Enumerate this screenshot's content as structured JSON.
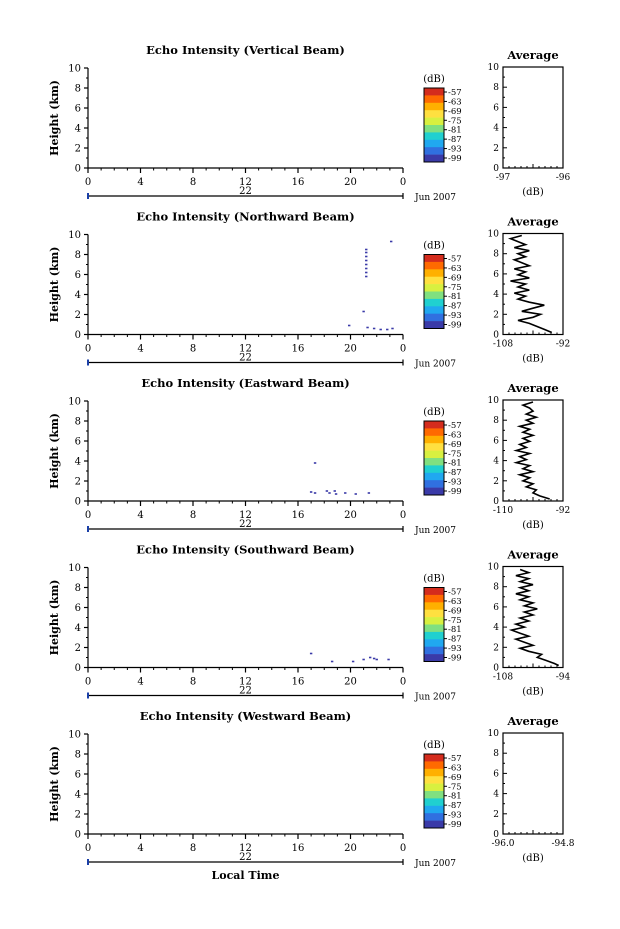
{
  "x_axis_label": "Local Time",
  "date_label": "Jun 2007",
  "day_label": "22",
  "height_axis_label": "Height (km)",
  "unit_label": "(dB)",
  "average_title": "Average",
  "x_ticks": [
    "0",
    "4",
    "8",
    "12",
    "16",
    "20",
    "0"
  ],
  "y_ticks": [
    "0",
    "2",
    "4",
    "6",
    "8",
    "10"
  ],
  "colorbar_ticks": [
    "-57",
    "-63",
    "-69",
    "-75",
    "-81",
    "-87",
    "-93",
    "-99"
  ],
  "colorbar_colors": [
    "#d42c1d",
    "#ff6a00",
    "#ffb000",
    "#ffe040",
    "#d8f040",
    "#80e080",
    "#20d0d0",
    "#20a8f0",
    "#3070e0",
    "#3a3aa8"
  ],
  "chart_data": [
    {
      "type": "heatmap",
      "title": "Echo Intensity (Vertical Beam)",
      "xlim": [
        0,
        24
      ],
      "ylim": [
        0,
        10
      ],
      "xlabel": "22",
      "ylabel": "Height (km)",
      "points": [],
      "profile": {
        "xlim": [
          -97,
          -96
        ],
        "x_ticks": [
          "-97",
          "-96"
        ],
        "xlabel": "(dB)",
        "values": []
      }
    },
    {
      "type": "heatmap",
      "title": "Echo Intensity (Northward Beam)",
      "xlim": [
        0,
        24
      ],
      "ylim": [
        0,
        10
      ],
      "xlabel": "22",
      "ylabel": "Height (km)",
      "points": [
        [
          21.0,
          2.3
        ],
        [
          21.2,
          5.8
        ],
        [
          21.2,
          6.2
        ],
        [
          21.2,
          6.6
        ],
        [
          21.2,
          7.0
        ],
        [
          21.2,
          7.4
        ],
        [
          21.2,
          7.8
        ],
        [
          21.2,
          8.2
        ],
        [
          21.2,
          8.5
        ],
        [
          19.9,
          0.9
        ],
        [
          21.3,
          0.7
        ],
        [
          21.8,
          0.6
        ],
        [
          22.3,
          0.5
        ],
        [
          22.8,
          0.5
        ],
        [
          23.2,
          0.6
        ],
        [
          23.1,
          9.3
        ]
      ],
      "profile": {
        "xlim": [
          -108,
          -92
        ],
        "x_ticks": [
          "-108",
          "-92"
        ],
        "xlabel": "(dB)",
        "values": [
          [
            -95,
            0.2
          ],
          [
            -97,
            0.5
          ],
          [
            -99,
            0.8
          ],
          [
            -101,
            1.1
          ],
          [
            -104,
            1.4
          ],
          [
            -100,
            1.7
          ],
          [
            -98,
            2.0
          ],
          [
            -103,
            2.3
          ],
          [
            -100,
            2.6
          ],
          [
            -97,
            2.9
          ],
          [
            -101,
            3.2
          ],
          [
            -104,
            3.5
          ],
          [
            -102,
            3.8
          ],
          [
            -105,
            4.1
          ],
          [
            -101,
            4.4
          ],
          [
            -104,
            4.7
          ],
          [
            -102,
            5.0
          ],
          [
            -106,
            5.3
          ],
          [
            -101,
            5.6
          ],
          [
            -104,
            5.9
          ],
          [
            -102,
            6.2
          ],
          [
            -105,
            6.5
          ],
          [
            -101,
            6.8
          ],
          [
            -103,
            7.1
          ],
          [
            -105,
            7.4
          ],
          [
            -102,
            7.7
          ],
          [
            -104,
            8.0
          ],
          [
            -101,
            8.3
          ],
          [
            -105,
            8.6
          ],
          [
            -102,
            8.9
          ],
          [
            -104,
            9.2
          ],
          [
            -106,
            9.5
          ],
          [
            -103,
            9.8
          ]
        ]
      }
    },
    {
      "type": "heatmap",
      "title": "Echo Intensity (Eastward Beam)",
      "xlim": [
        0,
        24
      ],
      "ylim": [
        0,
        10
      ],
      "xlabel": "22",
      "ylabel": "Height (km)",
      "points": [
        [
          17.3,
          3.8
        ],
        [
          17.0,
          0.9
        ],
        [
          17.3,
          0.8
        ],
        [
          18.4,
          0.8
        ],
        [
          18.8,
          1.0
        ],
        [
          18.9,
          0.7
        ],
        [
          19.6,
          0.8
        ],
        [
          20.4,
          0.7
        ],
        [
          21.4,
          0.8
        ],
        [
          18.2,
          1.0
        ]
      ],
      "profile": {
        "xlim": [
          -110,
          -92
        ],
        "x_ticks": [
          "-110",
          "-92"
        ],
        "xlabel": "(dB)",
        "values": [
          [
            -96,
            0.2
          ],
          [
            -99,
            0.5
          ],
          [
            -101,
            0.8
          ],
          [
            -100,
            1.1
          ],
          [
            -103,
            1.4
          ],
          [
            -101,
            1.7
          ],
          [
            -104,
            2.0
          ],
          [
            -102,
            2.3
          ],
          [
            -105,
            2.6
          ],
          [
            -101,
            2.9
          ],
          [
            -104,
            3.2
          ],
          [
            -102,
            3.5
          ],
          [
            -106,
            3.8
          ],
          [
            -103,
            4.1
          ],
          [
            -105,
            4.4
          ],
          [
            -102,
            4.7
          ],
          [
            -106,
            5.0
          ],
          [
            -103,
            5.3
          ],
          [
            -105,
            5.6
          ],
          [
            -102,
            5.9
          ],
          [
            -104,
            6.2
          ],
          [
            -101,
            6.5
          ],
          [
            -104,
            6.8
          ],
          [
            -102,
            7.1
          ],
          [
            -105,
            7.4
          ],
          [
            -101,
            7.7
          ],
          [
            -103,
            8.0
          ],
          [
            -100,
            8.3
          ],
          [
            -103,
            8.6
          ],
          [
            -101,
            8.9
          ],
          [
            -102,
            9.2
          ],
          [
            -104,
            9.5
          ],
          [
            -101,
            9.8
          ]
        ]
      }
    },
    {
      "type": "heatmap",
      "title": "Echo Intensity (Southward Beam)",
      "xlim": [
        0,
        24
      ],
      "ylim": [
        0,
        10
      ],
      "xlabel": "22",
      "ylabel": "Height (km)",
      "points": [
        [
          17.0,
          1.4
        ],
        [
          18.6,
          0.6
        ],
        [
          20.2,
          0.6
        ],
        [
          21.0,
          0.8
        ],
        [
          21.5,
          1.0
        ],
        [
          21.8,
          0.9
        ],
        [
          22.0,
          0.8
        ],
        [
          22.9,
          0.8
        ]
      ],
      "profile": {
        "xlim": [
          -108,
          -94
        ],
        "x_ticks": [
          "-108",
          "-94"
        ],
        "xlabel": "(dB)",
        "values": [
          [
            -95,
            0.2
          ],
          [
            -96,
            0.4
          ],
          [
            -98,
            0.7
          ],
          [
            -100,
            1.0
          ],
          [
            -99,
            1.3
          ],
          [
            -102,
            1.6
          ],
          [
            -104,
            1.9
          ],
          [
            -101,
            2.2
          ],
          [
            -103,
            2.5
          ],
          [
            -105,
            2.8
          ],
          [
            -102,
            3.1
          ],
          [
            -104,
            3.4
          ],
          [
            -106,
            3.7
          ],
          [
            -103,
            4.0
          ],
          [
            -105,
            4.3
          ],
          [
            -102,
            4.6
          ],
          [
            -104,
            4.9
          ],
          [
            -101,
            5.2
          ],
          [
            -103,
            5.5
          ],
          [
            -100,
            5.8
          ],
          [
            -103,
            6.1
          ],
          [
            -101,
            6.4
          ],
          [
            -104,
            6.7
          ],
          [
            -102,
            7.0
          ],
          [
            -105,
            7.3
          ],
          [
            -102,
            7.6
          ],
          [
            -104,
            7.9
          ],
          [
            -101,
            8.2
          ],
          [
            -104,
            8.5
          ],
          [
            -102,
            8.8
          ],
          [
            -105,
            9.1
          ],
          [
            -102,
            9.4
          ],
          [
            -104,
            9.7
          ]
        ]
      }
    },
    {
      "type": "heatmap",
      "title": "Echo Intensity (Westward Beam)",
      "xlim": [
        0,
        24
      ],
      "ylim": [
        0,
        10
      ],
      "xlabel": "22",
      "ylabel": "Height (km)",
      "points": [],
      "profile": {
        "xlim": [
          -96.0,
          -94.8
        ],
        "x_ticks": [
          "-96.0",
          "-94.8"
        ],
        "xlabel": "(dB)",
        "values": []
      }
    }
  ]
}
